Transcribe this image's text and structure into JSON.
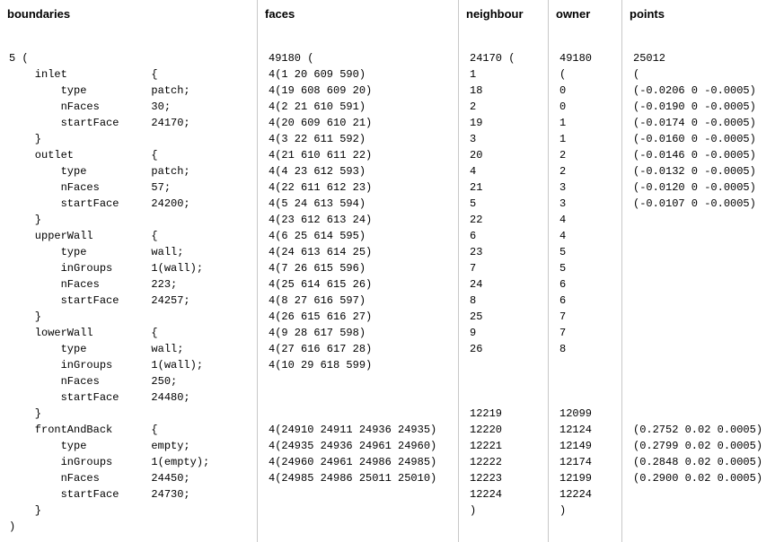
{
  "headers": {
    "boundaries": "boundaries",
    "faces": "faces",
    "neighbour": "neighbour",
    "owner": "owner",
    "points": "points"
  },
  "boundaries": {
    "open": "5 (",
    "close": ")",
    "entries": [
      {
        "name": "inlet",
        "props": [
          [
            "type",
            "patch;"
          ],
          [
            "nFaces",
            "30;"
          ],
          [
            "startFace",
            "24170;"
          ]
        ]
      },
      {
        "name": "outlet",
        "props": [
          [
            "type",
            "patch;"
          ],
          [
            "nFaces",
            "57;"
          ],
          [
            "startFace",
            "24200;"
          ]
        ]
      },
      {
        "name": "upperWall",
        "props": [
          [
            "type",
            "wall;"
          ],
          [
            "inGroups",
            "1(wall);"
          ],
          [
            "nFaces",
            "223;"
          ],
          [
            "startFace",
            "24257;"
          ]
        ]
      },
      {
        "name": "lowerWall",
        "props": [
          [
            "type",
            "wall;"
          ],
          [
            "inGroups",
            "1(wall);"
          ],
          [
            "nFaces",
            "250;"
          ],
          [
            "startFace",
            "24480;"
          ]
        ]
      },
      {
        "name": "frontAndBack",
        "props": [
          [
            "type",
            "empty;"
          ],
          [
            "inGroups",
            "1(empty);"
          ],
          [
            "nFaces",
            "24450;"
          ],
          [
            "startFace",
            "24730;"
          ]
        ]
      }
    ]
  },
  "faces": {
    "open": "49180 (",
    "top": [
      "4(1 20 609 590)",
      "4(19 608 609 20)",
      "4(2 21 610 591)",
      "4(20 609 610 21)",
      "4(3 22 611 592)",
      "4(21 610 611 22)",
      "4(4 23 612 593)",
      "4(22 611 612 23)",
      "4(5 24 613 594)",
      "4(23 612 613 24)",
      "4(6 25 614 595)",
      "4(24 613 614 25)",
      "4(7 26 615 596)",
      "4(25 614 615 26)",
      "4(8 27 616 597)",
      "4(26 615 616 27)",
      "4(9 28 617 598)",
      "4(27 616 617 28)",
      "4(10 29 618 599)"
    ],
    "bottom": [
      "4(24910 24911 24936 24935)",
      "4(24935 24936 24961 24960)",
      "4(24960 24961 24986 24985)",
      "4(24985 24986 25011 25010)"
    ]
  },
  "neighbour": {
    "open": "24170 (",
    "top": [
      "1",
      "18",
      "2",
      "19",
      "3",
      "20",
      "4",
      "21",
      "5",
      "22",
      "6",
      "23",
      "7",
      "24",
      "8",
      "25",
      "9",
      "26"
    ],
    "bottom": [
      "12219",
      "12220",
      "12221",
      "12222",
      "12223",
      "12224",
      ")"
    ]
  },
  "owner": {
    "open": "49180",
    "top": [
      "(",
      "0",
      "0",
      "1",
      "1",
      "2",
      "2",
      "3",
      "3",
      "4",
      "4",
      "5",
      "5",
      "6",
      "6",
      "7",
      "7",
      "8"
    ],
    "bottom": [
      "12099",
      "12124",
      "12149",
      "12174",
      "12199",
      "12224",
      ")"
    ]
  },
  "points": {
    "open": "25012",
    "top": [
      "(",
      "(-0.0206 0 -0.0005)",
      "(-0.0190 0 -0.0005)",
      "(-0.0174 0 -0.0005)",
      "(-0.0160 0 -0.0005)",
      "(-0.0146 0 -0.0005)",
      "(-0.0132 0 -0.0005)",
      "(-0.0120 0 -0.0005)",
      "(-0.0107 0 -0.0005)"
    ],
    "bottom": [
      "(0.2752 0.02 0.0005)",
      "(0.2799 0.02 0.0005)",
      "(0.2848 0.02 0.0005)",
      "(0.2900 0.02 0.0005)"
    ]
  }
}
